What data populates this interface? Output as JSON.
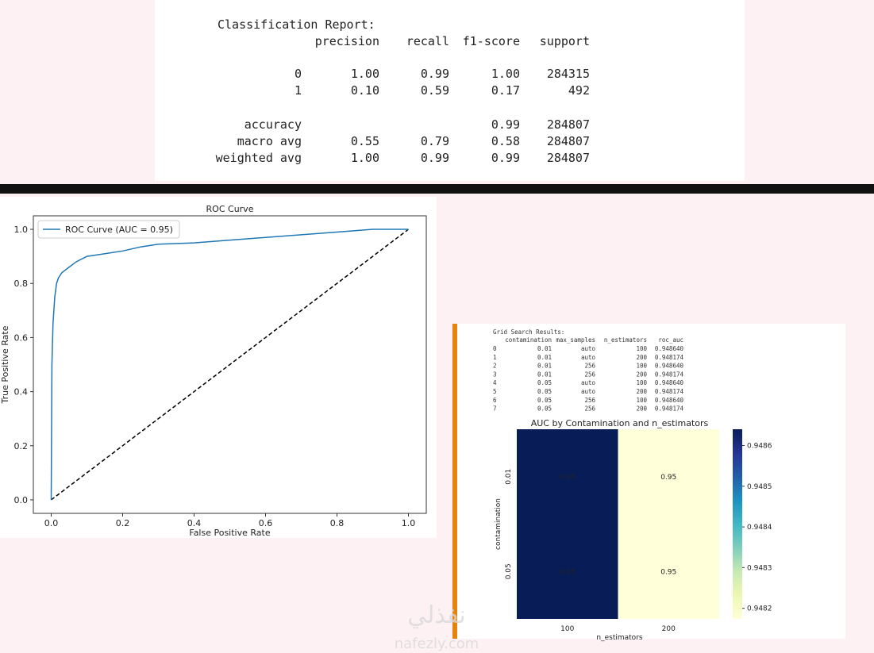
{
  "report": {
    "title": "Classification Report:",
    "columns": [
      "precision",
      "recall",
      "f1-score",
      "support"
    ],
    "rows": [
      {
        "label": "0",
        "precision": "1.00",
        "recall": "0.99",
        "f1_score": "1.00",
        "support": "284315"
      },
      {
        "label": "1",
        "precision": "0.10",
        "recall": "0.59",
        "f1_score": "0.17",
        "support": "492"
      },
      {
        "label": "accuracy",
        "f1_score": "0.99",
        "support": "284807"
      },
      {
        "label": "macro avg",
        "precision": "0.55",
        "recall": "0.79",
        "f1_score": "0.58",
        "support": "284807"
      },
      {
        "label": "weighted avg",
        "precision": "1.00",
        "recall": "0.99",
        "f1_score": "0.99",
        "support": "284807"
      }
    ]
  },
  "grid_search": {
    "title": "Grid Search Results:",
    "columns": [
      "contamination",
      "max_samples",
      "n_estimators",
      "roc_auc"
    ],
    "rows": [
      [
        "0",
        "0.01",
        "auto",
        "100",
        "0.948640"
      ],
      [
        "1",
        "0.01",
        "auto",
        "200",
        "0.948174"
      ],
      [
        "2",
        "0.01",
        "256",
        "100",
        "0.948640"
      ],
      [
        "3",
        "0.01",
        "256",
        "200",
        "0.948174"
      ],
      [
        "4",
        "0.05",
        "auto",
        "100",
        "0.948640"
      ],
      [
        "5",
        "0.05",
        "auto",
        "200",
        "0.948174"
      ],
      [
        "6",
        "0.05",
        "256",
        "100",
        "0.948640"
      ],
      [
        "7",
        "0.05",
        "256",
        "200",
        "0.948174"
      ]
    ]
  },
  "watermark": {
    "arabic": "نفذلي",
    "latin": "nafezly.com"
  },
  "chart_data": [
    {
      "type": "line",
      "title": "ROC Curve",
      "xlabel": "False Positive Rate",
      "ylabel": "True Positive Rate",
      "x": [
        0,
        0.002,
        0.005,
        0.01,
        0.015,
        0.02,
        0.03,
        0.05,
        0.07,
        0.1,
        0.15,
        0.2,
        0.25,
        0.3,
        0.4,
        0.5,
        0.6,
        0.7,
        0.8,
        0.9,
        0.95,
        1.0
      ],
      "series": [
        {
          "name": "ROC Curve (AUC = 0.95)",
          "color": "#1f77b4",
          "values": [
            0,
            0.5,
            0.65,
            0.75,
            0.8,
            0.82,
            0.84,
            0.86,
            0.88,
            0.9,
            0.91,
            0.92,
            0.935,
            0.945,
            0.95,
            0.96,
            0.97,
            0.98,
            0.99,
            1.0,
            1.0,
            1.0
          ]
        }
      ],
      "reference_line": {
        "x": [
          0,
          1
        ],
        "y": [
          0,
          1
        ],
        "color": "#000000",
        "style": "dashed"
      },
      "xlim": [
        -0.05,
        1.05
      ],
      "ylim": [
        -0.05,
        1.05
      ],
      "xticks": [
        {
          "value": 0,
          "label": "0.0"
        },
        0.2,
        0.4,
        0.6,
        0.8,
        {
          "value": 1,
          "label": "1.0"
        }
      ],
      "yticks": [
        {
          "value": 0,
          "label": "0.0"
        },
        0.2,
        0.4,
        0.6,
        0.8,
        {
          "value": 1,
          "label": "1.0"
        }
      ],
      "legend": "upper left"
    },
    {
      "type": "heatmap",
      "title": "AUC by Contamination and n_estimators",
      "xlabel": "n_estimators",
      "ylabel": "contamination",
      "categories": [
        "100",
        "200"
      ],
      "rows": [
        "0.01",
        "0.05"
      ],
      "values": [
        [
          0.94864,
          0.948174
        ],
        [
          0.94864,
          0.948174
        ]
      ],
      "value_labels": [
        [
          "0.95",
          "0.95"
        ],
        [
          "0.95",
          "0.95"
        ]
      ],
      "colormap": "YlGnBu",
      "clim": [
        0.948174,
        0.94864
      ],
      "colorbar_ticks": [
        0.9482,
        0.9483,
        0.9484,
        0.9485,
        0.9486
      ]
    }
  ]
}
